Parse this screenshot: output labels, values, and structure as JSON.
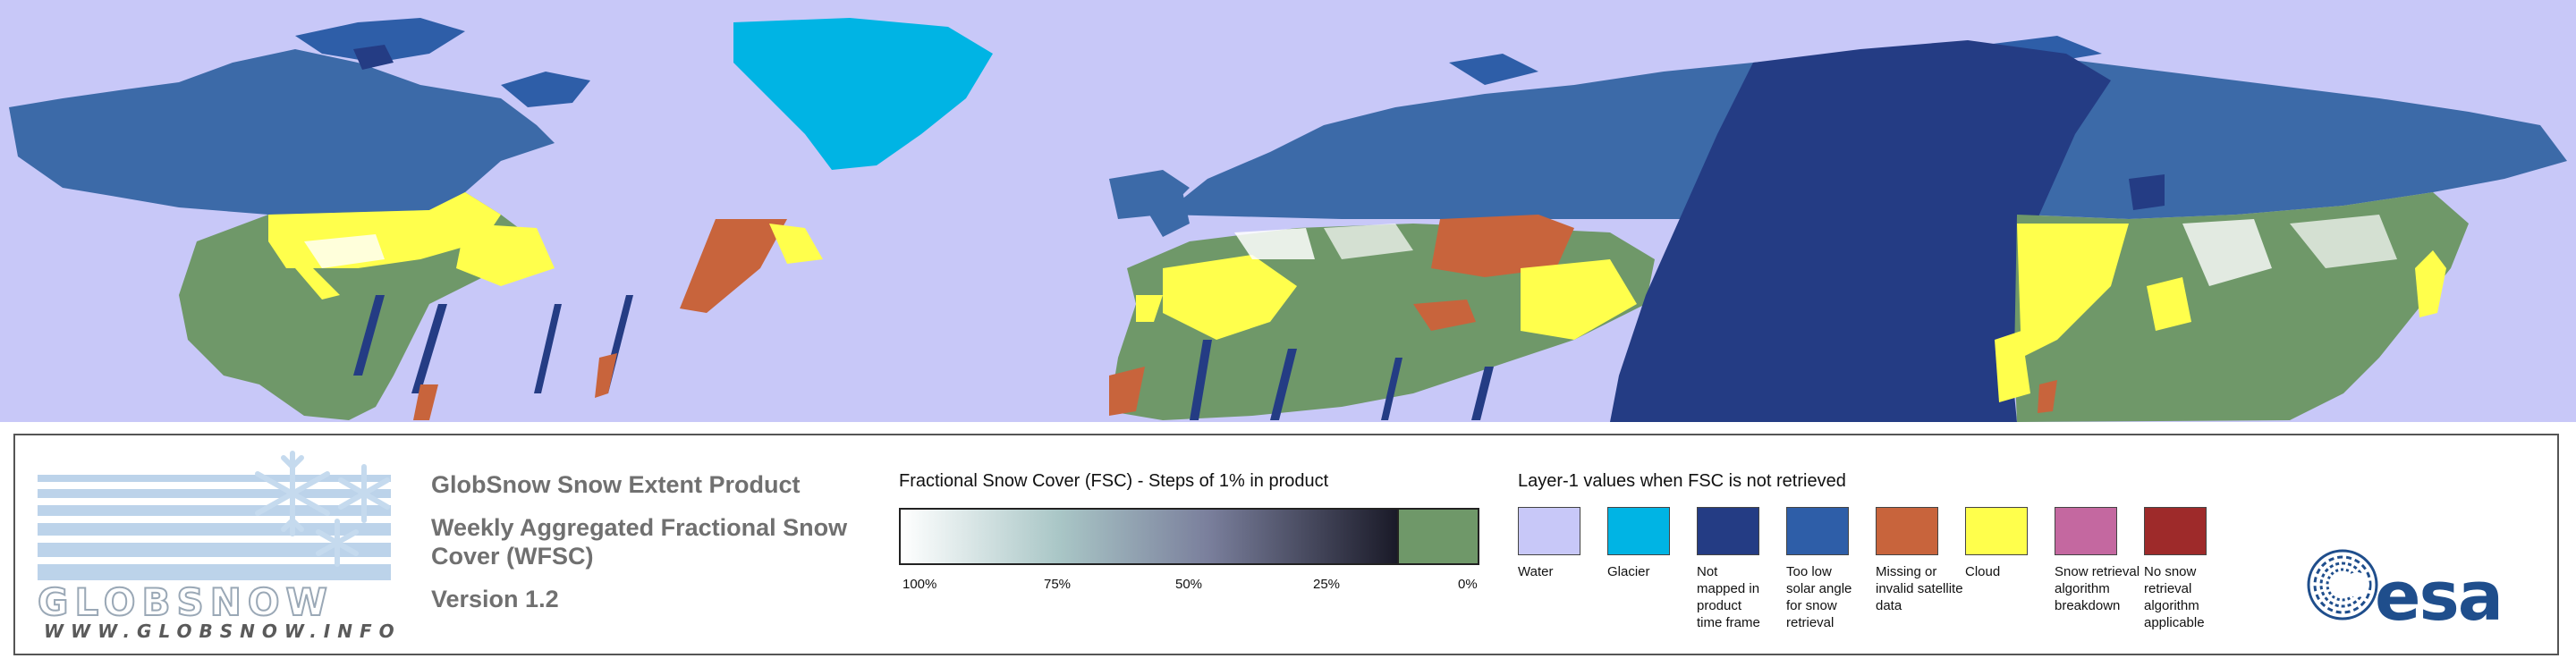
{
  "colors": {
    "water": "#c8c8f8",
    "glacier": "#00b4e4",
    "not_mapped": "#243c84",
    "low_solar": "#2e5ea8",
    "missing": "#c8643c",
    "cloud": "#ffff4c",
    "breakdown": "#c468a0",
    "no_retrieval": "#9e2a2a",
    "fsc_zero": "#6f9869",
    "northern_snow": "#3c6aa8"
  },
  "logo": {
    "wordmark": "GLOBSNOW",
    "url": "WWW.GLOBSNOW.INFO",
    "icon": "snowflake-icon"
  },
  "titles": {
    "product": "GlobSnow Snow Extent Product",
    "subtitle_line1": "Weekly Aggregated Fractional Snow",
    "subtitle_line2": "Cover (WFSC)",
    "version": "Version 1.2"
  },
  "fsc": {
    "heading": "Fractional Snow Cover (FSC) - Steps of 1% in product",
    "ticks": [
      "100%",
      "75%",
      "50%",
      "25%",
      "0%"
    ]
  },
  "layer1": {
    "heading": "Layer-1 values when FSC is not retrieved",
    "items": [
      {
        "lines": [
          "Water"
        ]
      },
      {
        "lines": [
          "Glacier"
        ]
      },
      {
        "lines": [
          "Not",
          "mapped in",
          "product",
          "time frame"
        ]
      },
      {
        "lines": [
          "Too low",
          "solar angle",
          "for snow",
          "retrieval"
        ]
      },
      {
        "lines": [
          "Missing or",
          "invalid satellite",
          "data"
        ]
      },
      {
        "lines": [
          "Cloud"
        ]
      },
      {
        "lines": [
          "Snow retrieval",
          "algorithm",
          "breakdown"
        ]
      },
      {
        "lines": [
          "No snow",
          "retrieval",
          "algorithm",
          "applicable"
        ]
      }
    ]
  },
  "esa_logo": {
    "wordmark": "esa",
    "icon": "esa-swirl-icon"
  }
}
